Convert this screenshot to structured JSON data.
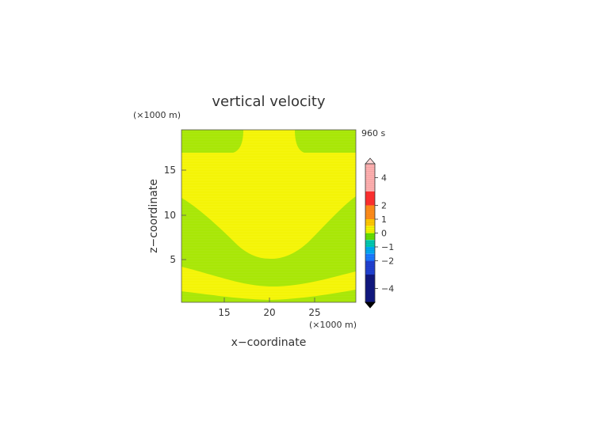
{
  "chart_data": {
    "type": "heatmap",
    "title": "vertical velocity",
    "xlabel": "x−coordinate",
    "ylabel": "z−coordinate",
    "x_unit": "(×1000 m)",
    "y_unit": "(×1000 m)",
    "time_label": "960 s",
    "xlim": [
      10.5,
      29.5
    ],
    "ylim": [
      0,
      19.5
    ],
    "x_ticks": [
      15,
      20,
      25
    ],
    "y_ticks": [
      5,
      10,
      15
    ],
    "regions": [
      {
        "level": "0 to 0.5",
        "color": "#f4f400",
        "description": "background (weak updraft)"
      },
      {
        "level": "-0.5 to 0",
        "color": "#a6e600",
        "description": "top corners"
      },
      {
        "level": "-0.5 to 0",
        "color": "#a6e600",
        "description": "mid-level U-shaped band"
      },
      {
        "level": "-0.5 to 0",
        "color": "#a6e600",
        "description": "bottom band"
      }
    ],
    "colorbar": {
      "labels": [
        "4",
        "2",
        "1",
        "0",
        "−1",
        "−2",
        "−4"
      ],
      "label_values": [
        4,
        2,
        1,
        0,
        -1,
        -2,
        -4
      ],
      "range": [
        -5,
        5
      ],
      "bands": [
        {
          "from": 3,
          "to": 5,
          "color": "#ffb0b0"
        },
        {
          "from": 2,
          "to": 3,
          "color": "#ff3030"
        },
        {
          "from": 1,
          "to": 2,
          "color": "#ff8c1a"
        },
        {
          "from": 0.5,
          "to": 1,
          "color": "#ffc800"
        },
        {
          "from": 0,
          "to": 0.5,
          "color": "#f4f400"
        },
        {
          "from": -0.5,
          "to": 0,
          "color": "#66dd00"
        },
        {
          "from": -1,
          "to": -0.5,
          "color": "#00c8b0"
        },
        {
          "from": -1.5,
          "to": -1,
          "color": "#00a8f0"
        },
        {
          "from": -2,
          "to": -1.5,
          "color": "#1a78ff"
        },
        {
          "from": -3,
          "to": -2,
          "color": "#2040d0"
        },
        {
          "from": -5,
          "to": -3,
          "color": "#101880"
        }
      ]
    }
  }
}
